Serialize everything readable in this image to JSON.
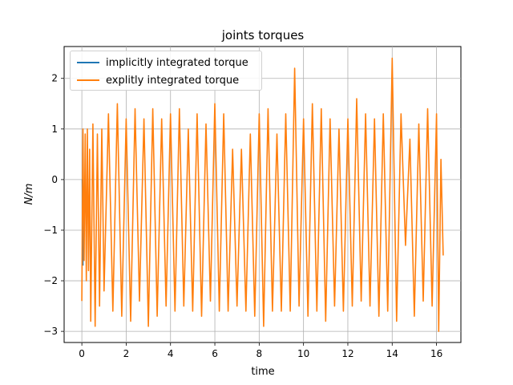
{
  "chart_data": {
    "type": "line",
    "title": "joints torques",
    "xlabel": "time",
    "ylabel": "N/m",
    "xlim": [
      -0.8,
      17.1
    ],
    "ylim": [
      -3.22,
      2.63
    ],
    "x_ticks": [
      "0",
      "2",
      "4",
      "6",
      "8",
      "10",
      "12",
      "14",
      "16"
    ],
    "x_tick_values": [
      0,
      2,
      4,
      6,
      8,
      10,
      12,
      14,
      16
    ],
    "y_ticks": [
      "−3",
      "−2",
      "−1",
      "0",
      "1",
      "2"
    ],
    "y_tick_values": [
      -3,
      -2,
      -1,
      0,
      1,
      2
    ],
    "grid": true,
    "legend_position": "top-left",
    "series": [
      {
        "name": "implicitly integrated torque",
        "color": "#1f77b4",
        "x": [
          0,
          0.02,
          0.05
        ],
        "values": [
          0.0,
          0.0,
          -1.7
        ]
      },
      {
        "name": "explitly integrated torque",
        "color": "#ff7f0e",
        "x": [
          0.0,
          0.05,
          0.1,
          0.15,
          0.2,
          0.25,
          0.3,
          0.35,
          0.4,
          0.5,
          0.6,
          0.7,
          0.8,
          0.9,
          1.0,
          1.2,
          1.4,
          1.6,
          1.8,
          2.0,
          2.2,
          2.4,
          2.6,
          2.8,
          3.0,
          3.2,
          3.4,
          3.6,
          3.8,
          4.0,
          4.2,
          4.4,
          4.6,
          4.8,
          5.0,
          5.2,
          5.4,
          5.6,
          5.8,
          6.0,
          6.2,
          6.4,
          6.6,
          6.8,
          7.0,
          7.2,
          7.4,
          7.6,
          7.8,
          8.0,
          8.2,
          8.4,
          8.6,
          8.8,
          9.0,
          9.2,
          9.4,
          9.6,
          9.8,
          10.0,
          10.2,
          10.4,
          10.6,
          10.8,
          11.0,
          11.2,
          11.4,
          11.6,
          11.8,
          12.0,
          12.2,
          12.4,
          12.6,
          12.8,
          13.0,
          13.2,
          13.4,
          13.6,
          13.8,
          14.0,
          14.2,
          14.4,
          14.6,
          14.8,
          15.0,
          15.2,
          15.4,
          15.6,
          15.8,
          16.0,
          16.1,
          16.2,
          16.3
        ],
        "values": [
          -2.4,
          1.0,
          -1.6,
          0.9,
          -2.0,
          1.0,
          -1.8,
          0.6,
          -2.8,
          1.1,
          -2.9,
          0.9,
          -2.5,
          1.0,
          -2.2,
          1.3,
          -2.6,
          1.5,
          -2.7,
          1.2,
          -2.8,
          1.4,
          -2.4,
          1.2,
          -2.9,
          1.4,
          -2.7,
          1.2,
          -2.5,
          1.3,
          -2.6,
          1.4,
          -2.5,
          1.0,
          -2.6,
          1.3,
          -2.7,
          1.1,
          -2.4,
          1.5,
          -2.6,
          1.3,
          -2.6,
          0.6,
          -2.5,
          0.6,
          -2.6,
          0.9,
          -2.7,
          1.3,
          -2.9,
          1.4,
          -2.6,
          0.9,
          -2.6,
          1.3,
          -2.6,
          2.2,
          -2.5,
          1.2,
          -2.7,
          1.5,
          -2.6,
          1.4,
          -2.8,
          1.2,
          -2.5,
          1.0,
          -2.6,
          1.2,
          -2.5,
          1.6,
          -2.4,
          1.3,
          -2.5,
          1.2,
          -2.7,
          1.3,
          -2.6,
          2.4,
          -2.8,
          1.3,
          -1.3,
          0.8,
          -2.7,
          1.1,
          -2.4,
          1.4,
          -2.5,
          1.3,
          -3.0,
          0.4,
          -1.5
        ]
      }
    ]
  }
}
